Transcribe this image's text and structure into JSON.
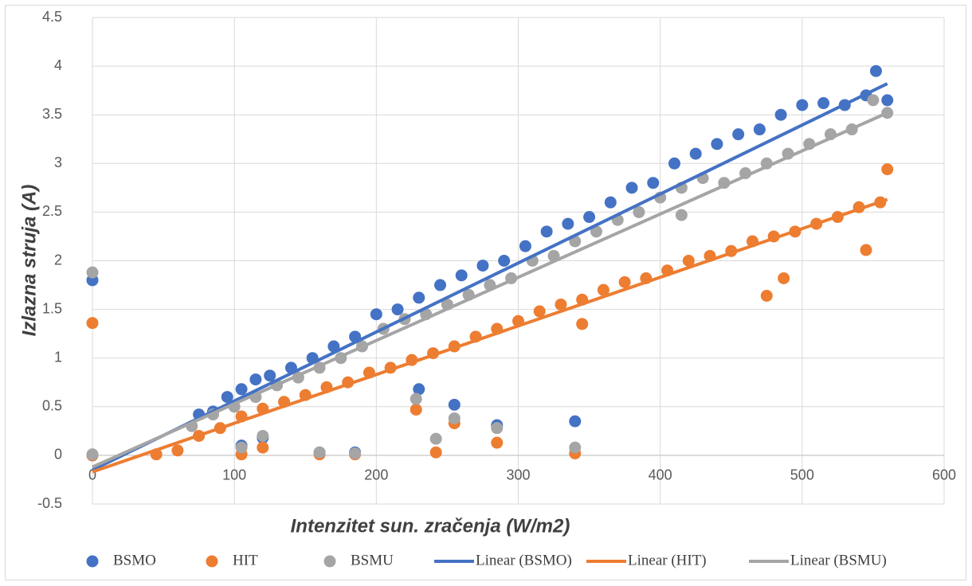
{
  "chart_data": {
    "type": "scatter",
    "x_label": "Intenzitet sun. zračenja  (W/m2)",
    "y_label": "Izlazna  struja  (A)",
    "xlim": [
      0,
      600
    ],
    "xticks": [
      0,
      100,
      200,
      300,
      400,
      500,
      600
    ],
    "ylim": [
      -0.5,
      4.5
    ],
    "yticks": [
      -0.5,
      0,
      0.5,
      1,
      1.5,
      2,
      2.5,
      3,
      3.5,
      4,
      4.5
    ],
    "grid": true,
    "legend": "bottom",
    "series": [
      {
        "name": "BSMO",
        "type": "scatter",
        "color": "#4472c4",
        "x": [
          0,
          0,
          75,
          85,
          95,
          105,
          115,
          125,
          140,
          155,
          170,
          185,
          200,
          215,
          230,
          245,
          260,
          275,
          290,
          305,
          320,
          335,
          350,
          365,
          380,
          395,
          410,
          425,
          440,
          455,
          470,
          485,
          500,
          515,
          530,
          545,
          552,
          560,
          230,
          255,
          285,
          340,
          105,
          120,
          160,
          185
        ],
        "values": [
          1.8,
          0,
          0.42,
          0.45,
          0.6,
          0.68,
          0.78,
          0.82,
          0.9,
          1.0,
          1.12,
          1.22,
          1.45,
          1.5,
          1.62,
          1.75,
          1.85,
          1.95,
          2.0,
          2.15,
          2.3,
          2.38,
          2.45,
          2.6,
          2.75,
          2.8,
          3.0,
          3.1,
          3.2,
          3.3,
          3.35,
          3.5,
          3.6,
          3.62,
          3.6,
          3.7,
          3.95,
          3.65,
          0.68,
          0.52,
          0.31,
          0.35,
          0.1,
          0.18,
          0.03,
          0.03
        ]
      },
      {
        "name": "HIT",
        "type": "scatter",
        "color": "#ed7d31",
        "x": [
          0,
          0,
          45,
          60,
          75,
          90,
          105,
          120,
          135,
          150,
          165,
          180,
          195,
          210,
          225,
          240,
          255,
          270,
          285,
          300,
          315,
          330,
          345,
          360,
          375,
          390,
          405,
          420,
          435,
          450,
          465,
          480,
          495,
          510,
          525,
          540,
          555,
          560,
          475,
          487,
          545,
          228,
          242,
          255,
          285,
          340,
          105,
          120,
          160,
          185,
          345
        ],
        "values": [
          1.36,
          0,
          0.01,
          0.05,
          0.2,
          0.28,
          0.4,
          0.48,
          0.55,
          0.62,
          0.7,
          0.75,
          0.85,
          0.9,
          0.98,
          1.05,
          1.12,
          1.22,
          1.3,
          1.38,
          1.48,
          1.55,
          1.6,
          1.7,
          1.78,
          1.82,
          1.9,
          2.0,
          2.05,
          2.1,
          2.2,
          2.25,
          2.3,
          2.38,
          2.45,
          2.55,
          2.6,
          2.94,
          1.64,
          1.82,
          2.11,
          0.47,
          0.03,
          0.33,
          0.13,
          0.02,
          0.01,
          0.08,
          0.01,
          0.01,
          1.35
        ]
      },
      {
        "name": "BSMU",
        "type": "scatter",
        "color": "#a5a5a5",
        "x": [
          0,
          0,
          70,
          85,
          100,
          115,
          130,
          145,
          160,
          175,
          190,
          205,
          220,
          235,
          250,
          265,
          280,
          295,
          310,
          325,
          340,
          355,
          370,
          385,
          400,
          415,
          430,
          445,
          460,
          475,
          490,
          505,
          520,
          535,
          550,
          560,
          228,
          242,
          255,
          285,
          340,
          105,
          120,
          160,
          185,
          415
        ],
        "values": [
          1.88,
          0.01,
          0.3,
          0.42,
          0.5,
          0.6,
          0.72,
          0.8,
          0.9,
          1.0,
          1.12,
          1.3,
          1.4,
          1.45,
          1.55,
          1.65,
          1.75,
          1.82,
          2.0,
          2.05,
          2.2,
          2.3,
          2.42,
          2.5,
          2.65,
          2.75,
          2.85,
          2.8,
          2.9,
          3.0,
          3.1,
          3.2,
          3.3,
          3.35,
          3.65,
          3.52,
          0.58,
          0.17,
          0.38,
          0.28,
          0.08,
          0.08,
          0.2,
          0.03,
          0.02,
          2.47
        ]
      },
      {
        "name": "Linear (BSMO)",
        "type": "line",
        "color": "#4472c4",
        "x": [
          0,
          560
        ],
        "values": [
          -0.15,
          3.82
        ]
      },
      {
        "name": "Linear (HIT)",
        "type": "line",
        "color": "#ed7d31",
        "x": [
          0,
          560
        ],
        "values": [
          -0.17,
          2.63
        ]
      },
      {
        "name": "Linear (BSMU)",
        "type": "line",
        "color": "#a5a5a5",
        "x": [
          0,
          560
        ],
        "values": [
          -0.12,
          3.52
        ]
      }
    ]
  }
}
